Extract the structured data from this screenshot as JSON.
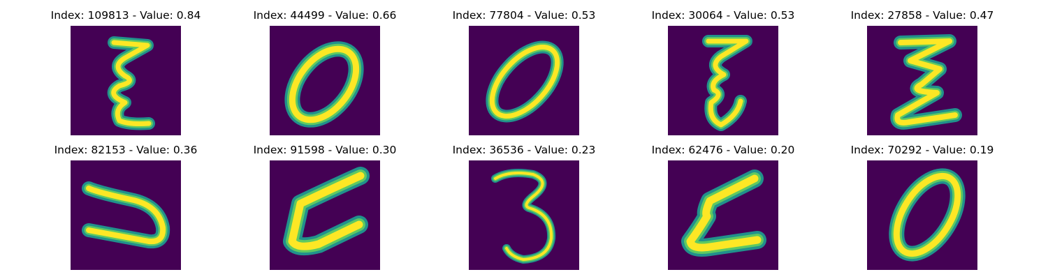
{
  "colors": {
    "background": "#440154",
    "stroke_edge": "#21918c",
    "stroke_mid": "#5ec962",
    "stroke_core": "#fde725"
  },
  "panels": [
    {
      "title": "Index: 109813 - Value: 0.84",
      "glyph": "sigma-wavy"
    },
    {
      "title": "Index: 44499 - Value: 0.66",
      "glyph": "zero-slanted"
    },
    {
      "title": "Index: 77804 - Value: 0.53",
      "glyph": "zero-slanted"
    },
    {
      "title": "Index: 30064 - Value: 0.53",
      "glyph": "sigma-wavy"
    },
    {
      "title": "Index: 27858 - Value: 0.47",
      "glyph": "sigma-wavy"
    },
    {
      "title": "Index: 82153 - Value: 0.36",
      "glyph": "rotated-u"
    },
    {
      "title": "Index: 91598 - Value: 0.30",
      "glyph": "rotated-e"
    },
    {
      "title": "Index: 36536 - Value: 0.23",
      "glyph": "three"
    },
    {
      "title": "Index: 62476 - Value: 0.20",
      "glyph": "rotated-e"
    },
    {
      "title": "Index: 70292 - Value: 0.19",
      "glyph": "zero-slanted"
    }
  ]
}
